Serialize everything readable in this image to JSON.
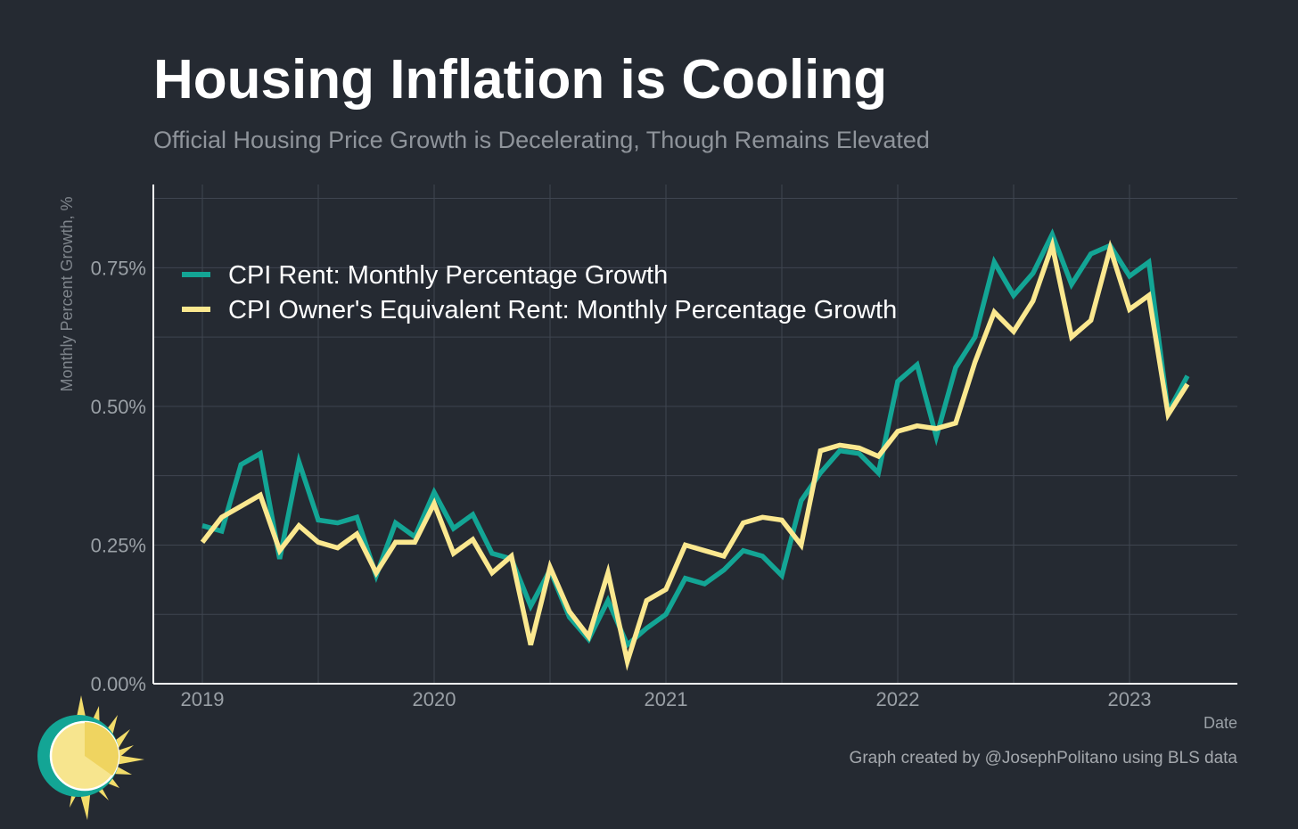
{
  "header": {
    "title": "Housing Inflation is Cooling",
    "subtitle": "Official Housing Price Growth is Decelerating, Though Remains Elevated"
  },
  "footer": {
    "credit": "Graph created by @JosephPolitano using BLS data"
  },
  "chart_data": {
    "type": "line",
    "title": "Housing Inflation is Cooling",
    "subtitle": "Official Housing Price Growth is Decelerating, Though Remains Elevated",
    "xlabel": "Date",
    "ylabel": "Monthly Percent Growth, %",
    "xlim": [
      "2019-01",
      "2023-04"
    ],
    "ylim": [
      0,
      0.9
    ],
    "grid": true,
    "legend_position": "top-left",
    "x_ticks": [
      "2019",
      "2020",
      "2021",
      "2022",
      "2023"
    ],
    "y_ticks": [
      "0.00%",
      "0.25%",
      "0.50%",
      "0.75%"
    ],
    "y_tick_values": [
      0,
      0.25,
      0.5,
      0.75
    ],
    "x": [
      "2019-01",
      "2019-02",
      "2019-03",
      "2019-04",
      "2019-05",
      "2019-06",
      "2019-07",
      "2019-08",
      "2019-09",
      "2019-10",
      "2019-11",
      "2019-12",
      "2020-01",
      "2020-02",
      "2020-03",
      "2020-04",
      "2020-05",
      "2020-06",
      "2020-07",
      "2020-08",
      "2020-09",
      "2020-10",
      "2020-11",
      "2020-12",
      "2021-01",
      "2021-02",
      "2021-03",
      "2021-04",
      "2021-05",
      "2021-06",
      "2021-07",
      "2021-08",
      "2021-09",
      "2021-10",
      "2021-11",
      "2021-12",
      "2022-01",
      "2022-02",
      "2022-03",
      "2022-04",
      "2022-05",
      "2022-06",
      "2022-07",
      "2022-08",
      "2022-09",
      "2022-10",
      "2022-11",
      "2022-12",
      "2023-01",
      "2023-02",
      "2023-03",
      "2023-04"
    ],
    "series": [
      {
        "name": "CPI Rent: Monthly Percentage Growth",
        "color": "#13a595",
        "values": [
          0.285,
          0.275,
          0.395,
          0.415,
          0.225,
          0.4,
          0.295,
          0.29,
          0.3,
          0.195,
          0.29,
          0.265,
          0.345,
          0.28,
          0.305,
          0.235,
          0.225,
          0.14,
          0.205,
          0.12,
          0.08,
          0.15,
          0.07,
          0.1,
          0.125,
          0.19,
          0.18,
          0.205,
          0.24,
          0.23,
          0.195,
          0.33,
          0.38,
          0.42,
          0.415,
          0.38,
          0.545,
          0.575,
          0.445,
          0.57,
          0.625,
          0.76,
          0.7,
          0.74,
          0.81,
          0.72,
          0.775,
          0.79,
          0.735,
          0.76,
          0.49,
          0.555
        ]
      },
      {
        "name": "CPI Owner's Equivalent Rent: Monthly Percentage Growth",
        "color": "#fbe88f",
        "values": [
          0.255,
          0.3,
          0.32,
          0.34,
          0.24,
          0.285,
          0.255,
          0.245,
          0.27,
          0.2,
          0.255,
          0.255,
          0.325,
          0.235,
          0.26,
          0.2,
          0.23,
          0.07,
          0.21,
          0.13,
          0.085,
          0.2,
          0.04,
          0.15,
          0.17,
          0.25,
          0.24,
          0.23,
          0.29,
          0.3,
          0.295,
          0.25,
          0.42,
          0.43,
          0.425,
          0.41,
          0.455,
          0.465,
          0.46,
          0.47,
          0.58,
          0.67,
          0.635,
          0.69,
          0.79,
          0.625,
          0.655,
          0.785,
          0.675,
          0.7,
          0.485,
          0.54
        ]
      }
    ]
  }
}
